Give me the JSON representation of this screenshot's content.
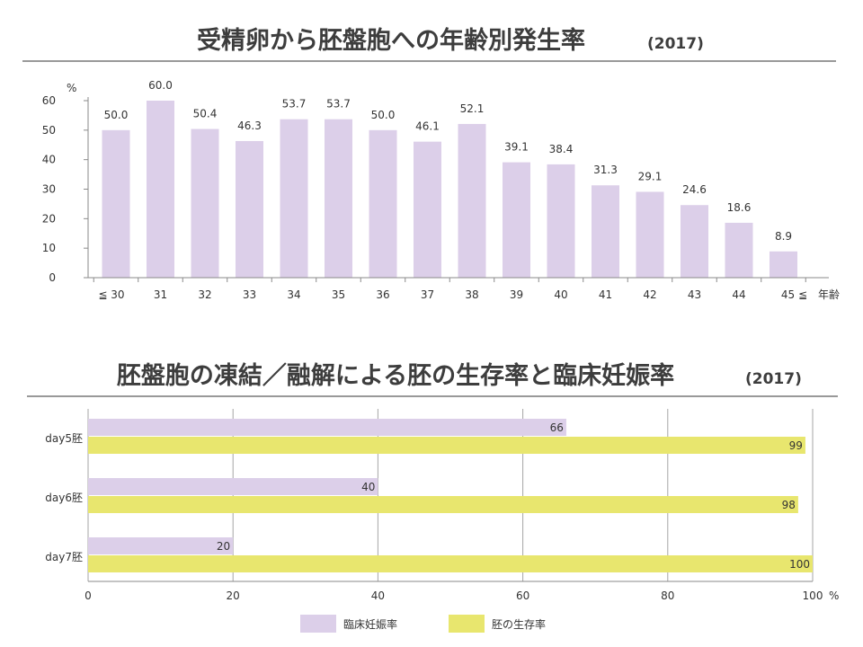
{
  "chart_data": [
    {
      "type": "bar",
      "title": "受精卵から胚盤胞への年齢別発生率",
      "title_year": "(2017)",
      "unit_label": "%",
      "xlabel": "年齢",
      "ylim": [
        0,
        60
      ],
      "yticks": [
        "0",
        "10",
        "20",
        "30",
        "40",
        "50",
        "60"
      ],
      "categories": [
        "≦ 30",
        "31",
        "32",
        "33",
        "34",
        "35",
        "36",
        "37",
        "38",
        "39",
        "40",
        "41",
        "42",
        "43",
        "44",
        "45 ≦"
      ],
      "values": [
        50.0,
        60.0,
        50.4,
        46.3,
        53.7,
        53.7,
        50.0,
        46.1,
        52.1,
        39.1,
        38.4,
        31.3,
        29.1,
        24.6,
        18.6,
        8.9
      ],
      "value_labels": [
        "50.0",
        "60.0",
        "50.4",
        "46.3",
        "53.7",
        "53.7",
        "50.0",
        "46.1",
        "52.1",
        "39.1",
        "38.4",
        "31.3",
        "29.1",
        "24.6",
        "18.6",
        "8.9"
      ],
      "color": "#dccfe9"
    },
    {
      "type": "bar",
      "orientation": "horizontal",
      "title": "胚盤胞の凍結／融解による胚の生存率と臨床妊娠率",
      "title_year": "(2017)",
      "unit_label": "%",
      "xlim": [
        0,
        100
      ],
      "xticks": [
        "0",
        "20",
        "40",
        "60",
        "80",
        "100"
      ],
      "categories": [
        "day5胚",
        "day6胚",
        "day7胚"
      ],
      "series": [
        {
          "name": "臨床妊娠率",
          "values": [
            66,
            40,
            20
          ],
          "labels": [
            "66",
            "40",
            "20"
          ],
          "color": "#dccfe9"
        },
        {
          "name": "胚の生存率",
          "values": [
            99,
            98,
            100
          ],
          "labels": [
            "99",
            "98",
            "100"
          ],
          "color": "#e8e66e"
        }
      ]
    }
  ]
}
